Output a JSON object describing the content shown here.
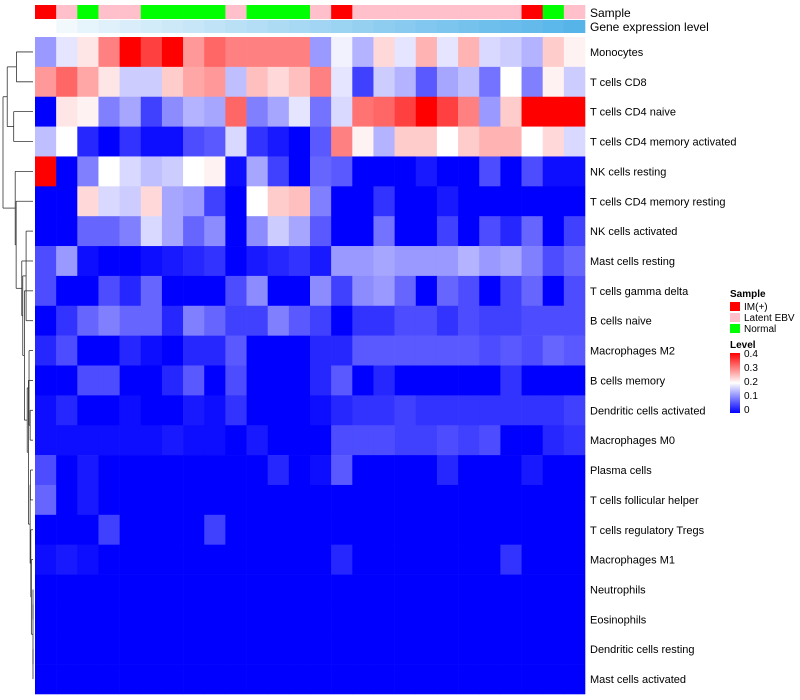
{
  "chart_data": {
    "type": "heatmap",
    "annotation_tracks": [
      {
        "name": "Sample",
        "values": [
          "IM(+)",
          "Latent EBV",
          "Normal",
          "Latent EBV",
          "Latent EBV",
          "Normal",
          "Normal",
          "Normal",
          "Normal",
          "Latent EBV",
          "Normal",
          "Normal",
          "Normal",
          "Latent EBV",
          "IM(+)",
          "Latent EBV",
          "Latent EBV",
          "Latent EBV",
          "Latent EBV",
          "Latent EBV",
          "Latent EBV",
          "Latent EBV",
          "Latent EBV",
          "IM(+)",
          "Normal",
          "Latent EBV"
        ]
      },
      {
        "name": "Gene expression level",
        "values": [
          0.02,
          0.04,
          0.06,
          0.07,
          0.08,
          0.09,
          0.1,
          0.11,
          0.12,
          0.13,
          0.14,
          0.15,
          0.16,
          0.17,
          0.18,
          0.19,
          0.2,
          0.21,
          0.22,
          0.23,
          0.24,
          0.25,
          0.26,
          0.27,
          0.28,
          0.29
        ]
      }
    ],
    "rows": [
      "Monocytes",
      "T cells CD8",
      "T cells CD4 naive",
      "T cells CD4 memory activated",
      "NK cells resting",
      "T cells CD4 memory resting",
      "NK cells activated",
      "Mast cells resting",
      "T cells gamma delta",
      "B cells naive",
      "Macrophages M2",
      "B cells memory",
      "Dendritic cells activated",
      "Macrophages M0",
      "Plasma cells",
      "T cells follicular helper",
      "T cells regulatory  Tregs",
      "Macrophages M1",
      "Neutrophils",
      "Eosinophils",
      "Dendritic cells resting",
      "Mast cells activated"
    ],
    "values": [
      [
        0.12,
        0.18,
        0.22,
        0.3,
        0.4,
        0.35,
        0.4,
        0.28,
        0.32,
        0.3,
        0.3,
        0.3,
        0.3,
        0.12,
        0.19,
        0.14,
        0.23,
        0.18,
        0.26,
        0.18,
        0.26,
        0.17,
        0.16,
        0.14,
        0.24,
        0.21
      ],
      [
        0.28,
        0.32,
        0.27,
        0.22,
        0.16,
        0.16,
        0.24,
        0.27,
        0.28,
        0.15,
        0.25,
        0.23,
        0.25,
        0.3,
        0.18,
        0.05,
        0.16,
        0.14,
        0.07,
        0.13,
        0.15,
        0.09,
        0.2,
        0.1,
        0.21,
        0.16
      ],
      [
        0.0,
        0.22,
        0.21,
        0.1,
        0.13,
        0.05,
        0.11,
        0.14,
        0.13,
        0.32,
        0.1,
        0.13,
        0.18,
        0.09,
        0.17,
        0.31,
        0.32,
        0.35,
        0.4,
        0.35,
        0.3,
        0.12,
        0.24,
        0.4,
        0.4,
        0.4
      ],
      [
        0.15,
        0.2,
        0.03,
        0.0,
        0.04,
        0.01,
        0.01,
        0.06,
        0.07,
        0.17,
        0.04,
        0.02,
        0.0,
        0.07,
        0.3,
        0.21,
        0.14,
        0.24,
        0.24,
        0.2,
        0.24,
        0.26,
        0.26,
        0.2,
        0.23,
        0.17
      ],
      [
        0.4,
        0.0,
        0.1,
        0.2,
        0.17,
        0.15,
        0.16,
        0.2,
        0.21,
        0.01,
        0.13,
        0.05,
        0.0,
        0.08,
        0.07,
        0.0,
        0.0,
        0.0,
        0.02,
        0.0,
        0.0,
        0.06,
        0.0,
        0.06,
        0.01,
        0.01
      ],
      [
        0.0,
        0.0,
        0.23,
        0.17,
        0.16,
        0.23,
        0.13,
        0.12,
        0.05,
        0.0,
        0.2,
        0.24,
        0.25,
        0.1,
        0.0,
        0.0,
        0.04,
        0.0,
        0.0,
        0.02,
        0.0,
        0.0,
        0.0,
        0.0,
        0.0,
        0.0
      ],
      [
        0.0,
        0.0,
        0.08,
        0.08,
        0.1,
        0.17,
        0.13,
        0.08,
        0.11,
        0.0,
        0.11,
        0.16,
        0.13,
        0.07,
        0.0,
        0.0,
        0.09,
        0.0,
        0.0,
        0.05,
        0.0,
        0.06,
        0.03,
        0.08,
        0.0,
        0.05
      ],
      [
        0.06,
        0.12,
        0.01,
        0.0,
        0.0,
        0.01,
        0.02,
        0.03,
        0.04,
        0.0,
        0.02,
        0.03,
        0.04,
        0.02,
        0.12,
        0.12,
        0.13,
        0.12,
        0.12,
        0.12,
        0.14,
        0.12,
        0.13,
        0.1,
        0.06,
        0.08
      ],
      [
        0.06,
        0.0,
        0.0,
        0.06,
        0.03,
        0.08,
        0.0,
        0.0,
        0.0,
        0.06,
        0.11,
        0.0,
        0.0,
        0.11,
        0.05,
        0.11,
        0.12,
        0.08,
        0.0,
        0.08,
        0.06,
        0.0,
        0.05,
        0.08,
        0.0,
        0.06
      ],
      [
        0.0,
        0.04,
        0.08,
        0.1,
        0.08,
        0.08,
        0.03,
        0.1,
        0.08,
        0.05,
        0.05,
        0.1,
        0.07,
        0.05,
        0.0,
        0.04,
        0.04,
        0.06,
        0.06,
        0.04,
        0.06,
        0.05,
        0.05,
        0.06,
        0.06,
        0.06
      ],
      [
        0.03,
        0.06,
        0.0,
        0.0,
        0.03,
        0.01,
        0.0,
        0.03,
        0.03,
        0.07,
        0.0,
        0.0,
        0.0,
        0.03,
        0.03,
        0.07,
        0.07,
        0.07,
        0.07,
        0.07,
        0.07,
        0.06,
        0.07,
        0.06,
        0.08,
        0.07
      ],
      [
        0.0,
        0.0,
        0.06,
        0.06,
        0.0,
        0.0,
        0.03,
        0.07,
        0.0,
        0.06,
        0.0,
        0.0,
        0.0,
        0.03,
        0.07,
        0.0,
        0.03,
        0.0,
        0.0,
        0.0,
        0.0,
        0.0,
        0.04,
        0.0,
        0.0,
        0.0
      ],
      [
        0.01,
        0.03,
        0.0,
        0.0,
        0.01,
        0.0,
        0.0,
        0.02,
        0.01,
        0.04,
        0.0,
        0.0,
        0.0,
        0.01,
        0.03,
        0.04,
        0.04,
        0.05,
        0.04,
        0.04,
        0.04,
        0.04,
        0.04,
        0.04,
        0.04,
        0.05
      ],
      [
        0.01,
        0.01,
        0.01,
        0.01,
        0.01,
        0.01,
        0.02,
        0.01,
        0.01,
        0.0,
        0.02,
        0.0,
        0.0,
        0.0,
        0.06,
        0.06,
        0.06,
        0.05,
        0.05,
        0.06,
        0.05,
        0.06,
        0.0,
        0.0,
        0.03,
        0.04
      ],
      [
        0.06,
        0.0,
        0.02,
        0.0,
        0.0,
        0.0,
        0.0,
        0.0,
        0.0,
        0.0,
        0.0,
        0.03,
        0.0,
        0.01,
        0.07,
        0.0,
        0.0,
        0.0,
        0.0,
        0.03,
        0.0,
        0.0,
        0.0,
        0.02,
        0.0,
        0.0
      ],
      [
        0.08,
        0.0,
        0.02,
        0.0,
        0.0,
        0.0,
        0.0,
        0.0,
        0.0,
        0.0,
        0.0,
        0.0,
        0.0,
        0.0,
        0.0,
        0.0,
        0.0,
        0.0,
        0.0,
        0.0,
        0.0,
        0.0,
        0.0,
        0.0,
        0.0,
        0.0
      ],
      [
        0.0,
        0.0,
        0.0,
        0.05,
        0.0,
        0.0,
        0.0,
        0.0,
        0.05,
        0.0,
        0.0,
        0.0,
        0.0,
        0.0,
        0.0,
        0.0,
        0.0,
        0.0,
        0.0,
        0.0,
        0.0,
        0.0,
        0.0,
        0.0,
        0.0,
        0.0
      ],
      [
        0.01,
        0.02,
        0.01,
        0.0,
        0.0,
        0.0,
        0.0,
        0.0,
        0.0,
        0.0,
        0.0,
        0.0,
        0.0,
        0.0,
        0.03,
        0.0,
        0.0,
        0.0,
        0.0,
        0.0,
        0.0,
        0.0,
        0.04,
        0.0,
        0.0,
        0.0
      ],
      [
        0.0,
        0.0,
        0.0,
        0.0,
        0.0,
        0.0,
        0.0,
        0.0,
        0.0,
        0.0,
        0.0,
        0.0,
        0.0,
        0.0,
        0.0,
        0.0,
        0.0,
        0.0,
        0.0,
        0.0,
        0.0,
        0.0,
        0.0,
        0.0,
        0.0,
        0.0
      ],
      [
        0.0,
        0.0,
        0.0,
        0.0,
        0.0,
        0.0,
        0.0,
        0.0,
        0.0,
        0.0,
        0.0,
        0.0,
        0.0,
        0.0,
        0.0,
        0.0,
        0.0,
        0.0,
        0.0,
        0.0,
        0.0,
        0.0,
        0.0,
        0.0,
        0.0,
        0.0
      ],
      [
        0.0,
        0.0,
        0.0,
        0.0,
        0.0,
        0.0,
        0.0,
        0.0,
        0.0,
        0.0,
        0.0,
        0.0,
        0.0,
        0.0,
        0.0,
        0.0,
        0.0,
        0.0,
        0.0,
        0.0,
        0.0,
        0.0,
        0.0,
        0.0,
        0.0,
        0.0
      ],
      [
        0.0,
        0.0,
        0.0,
        0.0,
        0.0,
        0.0,
        0.0,
        0.0,
        0.0,
        0.0,
        0.0,
        0.0,
        0.0,
        0.0,
        0.0,
        0.0,
        0.0,
        0.0,
        0.0,
        0.0,
        0.0,
        0.0,
        0.0,
        0.0,
        0.0,
        0.0
      ]
    ],
    "color_scale": {
      "min": 0,
      "max": 0.4,
      "low": "#0000ff",
      "mid": "#ffffff",
      "high": "#ff0000",
      "mid_value": 0.2
    },
    "legend": {
      "placement": "right",
      "sample_title": "Sample",
      "sample_entries": [
        {
          "label": "IM(+)",
          "color": "#ff0000"
        },
        {
          "label": "Latent EBV",
          "color": "#ffc0cb"
        },
        {
          "label": "Normal",
          "color": "#00ff00"
        }
      ],
      "level_title": "Level",
      "level_ticks": [
        "0.4",
        "0.3",
        "0.2",
        "0.1",
        "0"
      ]
    },
    "expression_colors": {
      "low": "#ffffff",
      "high": "#56b4e9"
    },
    "dendrogram": "rows"
  }
}
